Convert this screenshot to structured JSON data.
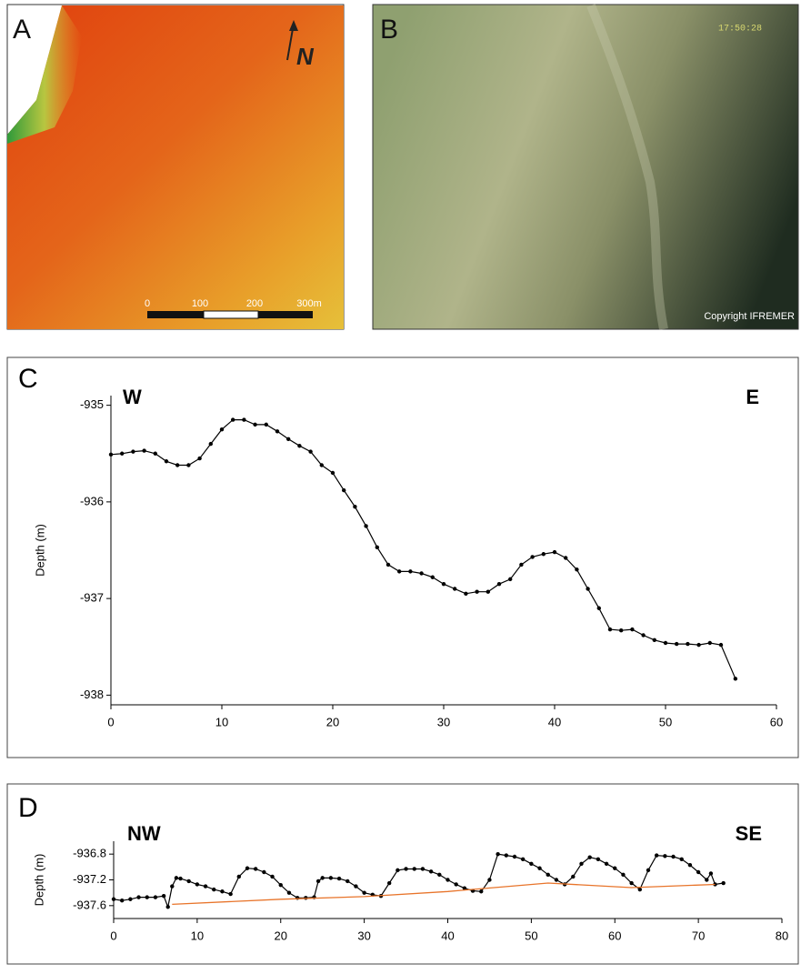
{
  "panels": {
    "a": {
      "label": "A",
      "north": "N",
      "scale": [
        "0",
        "100",
        "200",
        "300m"
      ]
    },
    "b": {
      "label": "B",
      "timestamp": "17:50:28",
      "credit": "Copyright IFREMER"
    }
  },
  "chart_data": [
    {
      "type": "line",
      "panel": "C",
      "ylabel": "Depth (m)",
      "annotations": [
        "W",
        "E"
      ],
      "xlim": [
        0,
        60
      ],
      "xticks": [
        0,
        10,
        20,
        30,
        40,
        50,
        60
      ],
      "ylim": [
        -938.1,
        -934.9
      ],
      "yticks": [
        -935,
        -936,
        -937,
        -938
      ],
      "series": [
        {
          "color": "#000000",
          "x": [
            0,
            1,
            2,
            3,
            4,
            5,
            6,
            7,
            8,
            9,
            10,
            11,
            12,
            13,
            14,
            15,
            16,
            17,
            18,
            19,
            20,
            21,
            22,
            23,
            24,
            25,
            26,
            27,
            28,
            29,
            30,
            31,
            32,
            33,
            34,
            35,
            36,
            37,
            38,
            39,
            40,
            41,
            42,
            43,
            44,
            45,
            46,
            47,
            48,
            49,
            50,
            51,
            52,
            53,
            54,
            55,
            56.3
          ],
          "values": [
            -935.51,
            -935.5,
            -935.48,
            -935.47,
            -935.5,
            -935.58,
            -935.62,
            -935.62,
            -935.55,
            -935.4,
            -935.25,
            -935.15,
            -935.15,
            -935.2,
            -935.2,
            -935.27,
            -935.35,
            -935.42,
            -935.48,
            -935.62,
            -935.7,
            -935.88,
            -936.05,
            -936.25,
            -936.47,
            -936.65,
            -936.72,
            -936.72,
            -936.74,
            -936.78,
            -936.85,
            -936.9,
            -936.95,
            -936.93,
            -936.93,
            -936.85,
            -936.8,
            -936.65,
            -936.57,
            -936.54,
            -936.52,
            -936.58,
            -936.7,
            -936.9,
            -937.1,
            -937.32,
            -937.33,
            -937.32,
            -937.38,
            -937.43,
            -937.46,
            -937.47,
            -937.47,
            -937.48,
            -937.46,
            -937.48,
            -937.83
          ]
        }
      ]
    },
    {
      "type": "line",
      "panel": "D",
      "ylabel": "Depth (m)",
      "annotations": [
        "NW",
        "SE"
      ],
      "xlim": [
        0,
        80
      ],
      "xticks": [
        0,
        10,
        20,
        30,
        40,
        50,
        60,
        70,
        80
      ],
      "ylim": [
        -937.8,
        -936.6
      ],
      "yticks": [
        -936.8,
        -937.2,
        -937.6
      ],
      "series": [
        {
          "color": "#000000",
          "x": [
            0,
            1,
            2,
            3,
            4,
            5,
            6,
            6.5,
            7,
            7.5,
            8,
            9,
            10,
            11,
            12,
            13,
            14,
            15,
            16,
            17,
            18,
            19,
            20,
            21,
            22,
            23,
            24,
            24.5,
            25,
            26,
            27,
            28,
            29,
            30,
            31,
            32,
            33,
            34,
            35,
            36,
            37,
            38,
            39,
            40,
            41,
            42,
            43,
            44,
            45,
            46,
            47,
            48,
            49,
            50,
            51,
            52,
            53,
            54,
            55,
            56,
            57,
            58,
            59,
            60,
            61,
            62,
            63,
            64,
            65,
            66,
            67,
            68,
            69,
            70,
            71,
            71.5,
            72,
            73
          ],
          "values": [
            -937.5,
            -937.52,
            -937.5,
            -937.47,
            -937.47,
            -937.47,
            -937.45,
            -937.62,
            -937.3,
            -937.17,
            -937.18,
            -937.22,
            -937.27,
            -937.3,
            -937.35,
            -937.38,
            -937.42,
            -937.15,
            -937.02,
            -937.03,
            -937.08,
            -937.15,
            -937.28,
            -937.4,
            -937.48,
            -937.48,
            -937.47,
            -937.22,
            -937.17,
            -937.17,
            -937.18,
            -937.22,
            -937.3,
            -937.4,
            -937.43,
            -937.45,
            -937.25,
            -937.05,
            -937.03,
            -937.03,
            -937.03,
            -937.07,
            -937.12,
            -937.2,
            -937.27,
            -937.33,
            -937.37,
            -937.38,
            -937.2,
            -936.8,
            -936.82,
            -936.84,
            -936.88,
            -936.95,
            -937.02,
            -937.12,
            -937.2,
            -937.27,
            -937.15,
            -936.95,
            -936.85,
            -936.88,
            -936.95,
            -937.02,
            -937.12,
            -937.25,
            -937.35,
            -937.05,
            -936.82,
            -936.83,
            -936.84,
            -936.88,
            -936.97,
            -937.08,
            -937.2,
            -937.1,
            -937.27,
            -937.25
          ]
        },
        {
          "color": "#e8742a",
          "x": [
            7,
            20,
            30,
            40,
            52,
            62,
            72
          ],
          "values": [
            -937.58,
            -937.5,
            -937.46,
            -937.38,
            -937.25,
            -937.32,
            -937.27
          ]
        }
      ]
    }
  ]
}
